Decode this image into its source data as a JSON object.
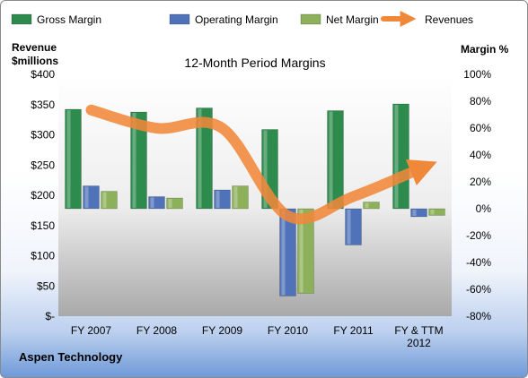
{
  "chart_data": {
    "type": "bar",
    "title": "12-Month Period Margins",
    "company": "Aspen Technology",
    "categories": [
      [
        "FY 2007"
      ],
      [
        "FY 2008"
      ],
      [
        "FY 2009"
      ],
      [
        "FY 2010"
      ],
      [
        "FY 2011"
      ],
      [
        "FY & TTM",
        "2012"
      ]
    ],
    "left_axis": {
      "label_lines": [
        "Revenue",
        "$millions"
      ],
      "range": [
        0,
        400
      ],
      "ticks": [
        0,
        50,
        100,
        150,
        200,
        250,
        300,
        350,
        400
      ],
      "tick_labels": [
        "$-",
        "$50",
        "$100",
        "$150",
        "$200",
        "$250",
        "$300",
        "$350",
        "$400"
      ]
    },
    "right_axis": {
      "label": "Margin %",
      "range": [
        -80,
        100
      ],
      "ticks": [
        -80,
        -60,
        -40,
        -20,
        0,
        20,
        40,
        60,
        80,
        100
      ],
      "tick_labels": [
        "-80%",
        "-60%",
        "-40%",
        "-20%",
        "0%",
        "20%",
        "40%",
        "60%",
        "80%",
        "100%"
      ]
    },
    "series": [
      {
        "name": "Gross Margin",
        "type": "bar",
        "axis": "right",
        "color": "#2e8b4e",
        "values": [
          74,
          72,
          75,
          59,
          73,
          78
        ]
      },
      {
        "name": "Operating Margin",
        "type": "bar",
        "axis": "right",
        "color": "#4f72b8",
        "values": [
          17,
          9,
          14,
          -65,
          -27,
          -6
        ]
      },
      {
        "name": "Net Margin",
        "type": "bar",
        "axis": "right",
        "color": "#8db05a",
        "values": [
          13,
          8,
          17,
          -63,
          5,
          -5
        ]
      },
      {
        "name": "Revenues",
        "type": "line",
        "axis": "left",
        "color": "#f0883a",
        "values": [
          341,
          311,
          311,
          166,
          198,
          243
        ]
      }
    ],
    "legend_position": "top",
    "grid": false
  }
}
